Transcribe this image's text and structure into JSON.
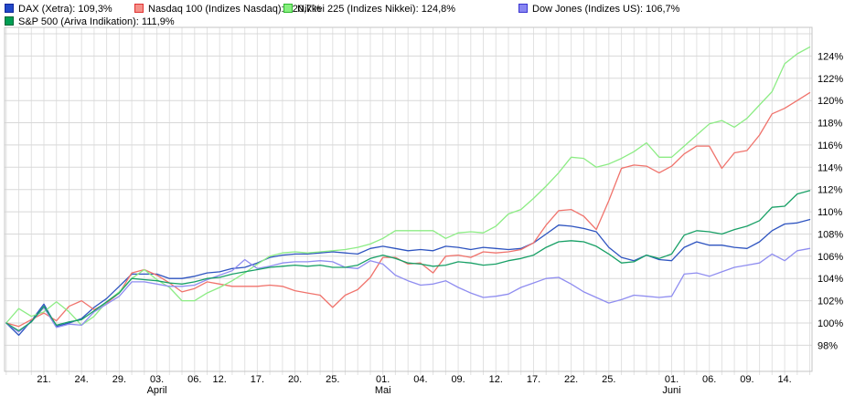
{
  "legend": {
    "items": [
      {
        "label": "DAX (Xetra): 109,3%"
      },
      {
        "label": "Nasdaq 100 (Indizes Nasdaq): 120,7%"
      },
      {
        "label": "Nikkei 225 (Indizes Nikkei): 124,8%"
      },
      {
        "label": "Dow Jones (Indizes US): 106,7%"
      },
      {
        "label": "S&P 500 (Ariva Indikation): 111,9%"
      }
    ]
  },
  "chart_data": {
    "type": "line",
    "title": "",
    "xlabel": "",
    "ylabel": "",
    "unit": "%",
    "grid": true,
    "legend_position": "top",
    "y_axis_side": "right",
    "y_ticks": [
      98,
      100,
      102,
      104,
      106,
      108,
      110,
      112,
      114,
      116,
      118,
      120,
      122,
      124
    ],
    "y_tick_suffix": "%",
    "ylim": [
      95.6,
      127.6
    ],
    "num_points": 65,
    "x_labels": [
      {
        "text": "21.",
        "day": 3
      },
      {
        "text": "24.",
        "day": 6
      },
      {
        "text": "29.",
        "day": 9
      },
      {
        "text": "03.",
        "day": 12,
        "month": "April"
      },
      {
        "text": "06.",
        "day": 15
      },
      {
        "text": "12.",
        "day": 17
      },
      {
        "text": "17.",
        "day": 20
      },
      {
        "text": "20.",
        "day": 23
      },
      {
        "text": "25.",
        "day": 26
      },
      {
        "text": "01.",
        "day": 30,
        "month": "Mai"
      },
      {
        "text": "04.",
        "day": 33
      },
      {
        "text": "09.",
        "day": 36
      },
      {
        "text": "12.",
        "day": 39
      },
      {
        "text": "17.",
        "day": 42
      },
      {
        "text": "22.",
        "day": 45
      },
      {
        "text": "25.",
        "day": 48
      },
      {
        "text": "01.",
        "day": 53,
        "month": "Juni"
      },
      {
        "text": "06.",
        "day": 56
      },
      {
        "text": "09.",
        "day": 59
      },
      {
        "text": "14.",
        "day": 62
      }
    ],
    "series": [
      {
        "name": "DAX (Xetra)",
        "final_value": "109,3%",
        "color": "#2e54c0",
        "swatch": "#2148c8",
        "swatch_border": "#10259a",
        "values": [
          100.0,
          98.9,
          100.2,
          101.7,
          99.7,
          100.0,
          100.4,
          101.4,
          102.2,
          103.3,
          104.4,
          104.4,
          104.4,
          104.0,
          104.0,
          104.2,
          104.5,
          104.6,
          104.9,
          105.0,
          105.4,
          105.9,
          106.1,
          106.2,
          106.2,
          106.3,
          106.4,
          106.3,
          106.2,
          106.7,
          106.9,
          106.7,
          106.5,
          106.6,
          106.5,
          106.9,
          106.8,
          106.6,
          106.8,
          106.7,
          106.6,
          106.7,
          107.2,
          108.0,
          108.8,
          108.7,
          108.5,
          108.2,
          106.8,
          105.9,
          105.6,
          106.1,
          105.7,
          105.6,
          106.8,
          107.3,
          107.0,
          107.0,
          106.8,
          106.7,
          107.3,
          108.3,
          108.9,
          109.0,
          109.3
        ]
      },
      {
        "name": "Nasdaq 100 (Indizes Nasdaq)",
        "final_value": "120,7%",
        "color": "#f0736c",
        "swatch": "#f59088",
        "swatch_border": "#e03232",
        "values": [
          100.0,
          99.7,
          100.3,
          100.9,
          100.2,
          101.5,
          102.0,
          101.2,
          101.8,
          102.7,
          104.5,
          104.8,
          104.3,
          103.6,
          102.8,
          103.1,
          103.7,
          103.5,
          103.3,
          103.3,
          103.3,
          103.4,
          103.3,
          102.9,
          102.7,
          102.5,
          101.4,
          102.5,
          103.0,
          104.1,
          105.9,
          105.9,
          105.3,
          105.4,
          104.5,
          106.0,
          106.1,
          105.9,
          106.4,
          106.3,
          106.4,
          106.6,
          107.2,
          108.8,
          110.1,
          110.2,
          109.6,
          108.4,
          111.0,
          113.9,
          114.2,
          114.1,
          113.5,
          114.1,
          115.2,
          115.9,
          115.9,
          113.9,
          115.3,
          115.5,
          116.9,
          118.8,
          119.3,
          120.0,
          120.7
        ]
      },
      {
        "name": "Nikkei 225 (Indizes Nikkei)",
        "final_value": "124,8%",
        "color": "#8cec84",
        "swatch": "#86ef7e",
        "swatch_border": "#2eb82e",
        "values": [
          100.0,
          101.3,
          100.6,
          101.0,
          101.9,
          101.0,
          99.8,
          100.6,
          101.9,
          102.8,
          104.0,
          104.8,
          103.9,
          103.2,
          102.0,
          102.0,
          102.7,
          103.2,
          103.8,
          104.5,
          105.3,
          106.0,
          106.3,
          106.4,
          106.3,
          106.4,
          106.5,
          106.6,
          106.8,
          107.1,
          107.6,
          108.3,
          108.3,
          108.3,
          108.3,
          107.6,
          108.1,
          108.2,
          108.1,
          108.7,
          109.8,
          110.2,
          111.2,
          112.3,
          113.5,
          114.9,
          114.8,
          114.0,
          114.3,
          114.8,
          115.4,
          116.2,
          114.9,
          114.9,
          115.9,
          116.9,
          117.9,
          118.2,
          117.6,
          118.4,
          119.6,
          120.8,
          123.3,
          124.2,
          124.8
        ]
      },
      {
        "name": "Dow Jones (Indizes US)",
        "final_value": "106,7%",
        "color": "#8f8df0",
        "swatch": "#8886f2",
        "swatch_border": "#3a35d1",
        "values": [
          100.0,
          99.2,
          100.1,
          101.4,
          99.6,
          99.9,
          99.8,
          101.0,
          101.7,
          102.4,
          103.7,
          103.7,
          103.5,
          103.3,
          103.3,
          103.4,
          103.9,
          104.3,
          104.7,
          105.7,
          104.9,
          105.1,
          105.4,
          105.5,
          105.5,
          105.6,
          105.5,
          105.0,
          104.9,
          105.6,
          105.3,
          104.3,
          103.8,
          103.4,
          103.5,
          103.8,
          103.2,
          102.7,
          102.3,
          102.4,
          102.6,
          103.2,
          103.6,
          104.0,
          104.1,
          103.5,
          102.8,
          102.3,
          101.8,
          102.1,
          102.5,
          102.4,
          102.3,
          102.4,
          104.4,
          104.5,
          104.2,
          104.6,
          105.0,
          105.2,
          105.4,
          106.2,
          105.6,
          106.5,
          106.7
        ]
      },
      {
        "name": "S&P 500 (Ariva Indikation)",
        "final_value": "111,9%",
        "color": "#18a066",
        "swatch": "#009e53",
        "swatch_border": "#006636",
        "values": [
          100.0,
          99.3,
          100.1,
          101.5,
          99.8,
          100.1,
          100.3,
          101.1,
          101.9,
          102.7,
          104.0,
          103.9,
          103.8,
          103.6,
          103.5,
          103.7,
          104.0,
          104.1,
          104.4,
          104.6,
          104.8,
          105.0,
          105.1,
          105.2,
          105.1,
          105.2,
          105.0,
          105.0,
          105.2,
          105.8,
          106.1,
          105.8,
          105.4,
          105.3,
          105.1,
          105.2,
          105.5,
          105.4,
          105.2,
          105.3,
          105.6,
          105.8,
          106.1,
          106.8,
          107.3,
          107.4,
          107.3,
          106.9,
          106.2,
          105.4,
          105.5,
          106.1,
          105.8,
          106.2,
          107.9,
          108.3,
          108.2,
          108.0,
          108.4,
          108.7,
          109.2,
          110.4,
          110.5,
          111.6,
          111.9
        ]
      }
    ]
  }
}
